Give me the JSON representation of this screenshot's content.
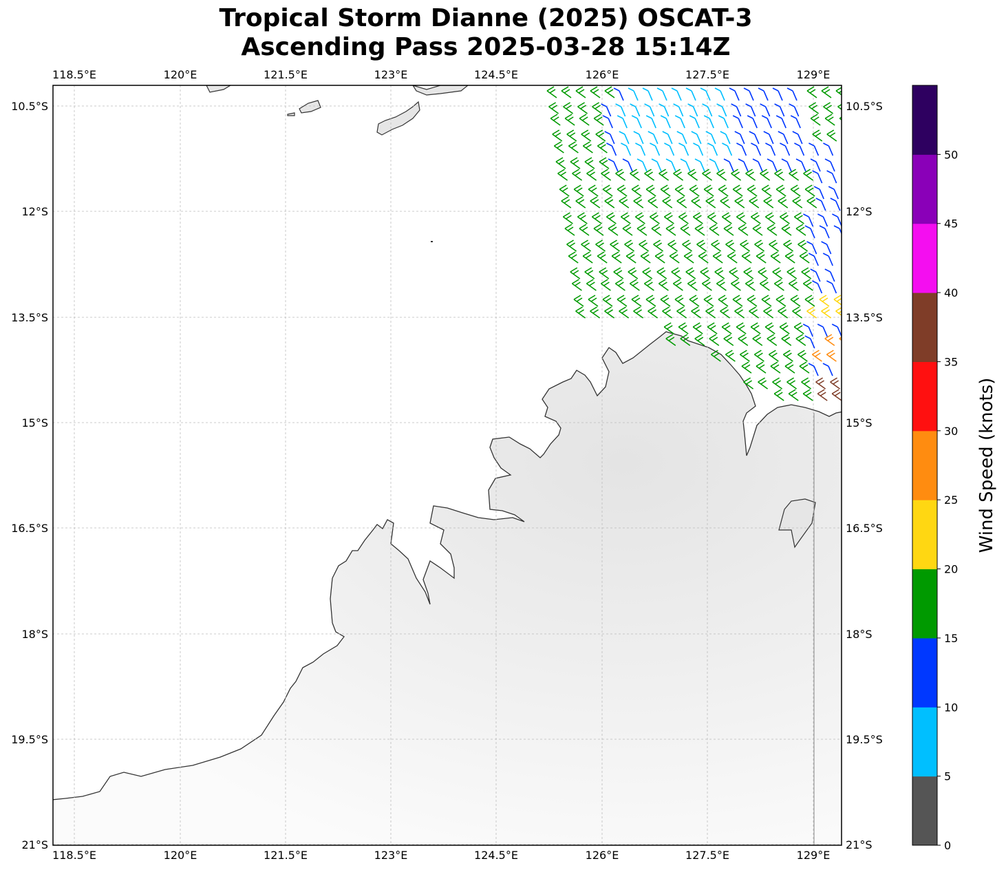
{
  "title": {
    "line1": "Tropical Storm Dianne (2025) OSCAT-3",
    "line2": "Ascending Pass 2025-03-28 15:14Z"
  },
  "map": {
    "lon_labels": [
      "118.5°E",
      "120°E",
      "121.5°E",
      "123°E",
      "124.5°E",
      "126°E",
      "127.5°E",
      "129°E"
    ],
    "lat_labels": [
      "10.5°S",
      "12°S",
      "13.5°S",
      "15°S",
      "16.5°S",
      "18°S",
      "19.5°S",
      "21°S"
    ],
    "land_color": "#f2f2f2",
    "coast_color": "#333333",
    "grid_style": "dashed"
  },
  "colorbar": {
    "label": "Wind Speed (knots)",
    "ticks": [
      "0",
      "5",
      "10",
      "15",
      "20",
      "25",
      "30",
      "35",
      "40",
      "45",
      "50"
    ],
    "colors": [
      "#555555",
      "#00bfff",
      "#0038ff",
      "#009a00",
      "#ffd712",
      "#ff8c10",
      "#ff1010",
      "#7f3d28",
      "#f40ef0",
      "#8a00b8",
      "#2e0060"
    ]
  }
}
